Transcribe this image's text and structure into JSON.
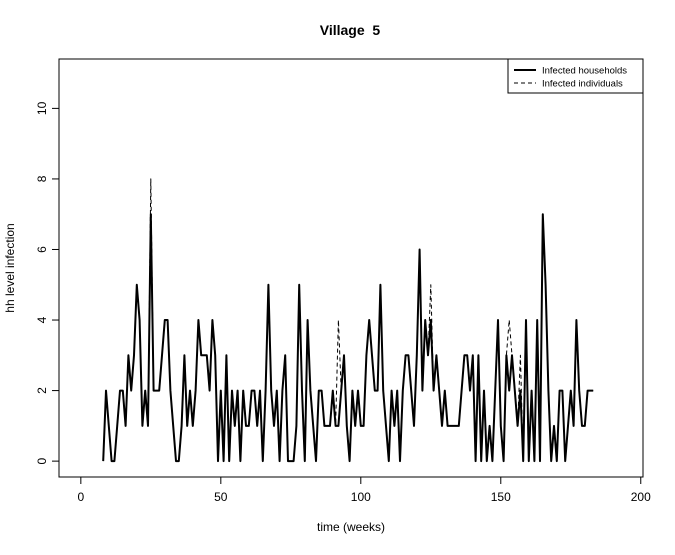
{
  "chart_data": {
    "type": "line",
    "title": "Village  5",
    "x_label": "time (weeks)",
    "y_label": "hh level infection",
    "x": [
      8,
      9,
      10,
      11,
      12,
      13,
      14,
      15,
      16,
      17,
      18,
      19,
      20,
      21,
      22,
      23,
      24,
      25,
      26,
      27,
      28,
      29,
      30,
      31,
      32,
      33,
      34,
      35,
      36,
      37,
      38,
      39,
      40,
      41,
      42,
      43,
      44,
      45,
      46,
      47,
      48,
      49,
      50,
      51,
      52,
      53,
      54,
      55,
      56,
      57,
      58,
      59,
      60,
      61,
      62,
      63,
      64,
      65,
      66,
      67,
      68,
      69,
      70,
      71,
      72,
      73,
      74,
      75,
      76,
      77,
      78,
      79,
      80,
      81,
      82,
      83,
      84,
      85,
      86,
      87,
      88,
      89,
      90,
      91,
      92,
      93,
      94,
      95,
      96,
      97,
      98,
      99,
      100,
      101,
      102,
      103,
      104,
      105,
      106,
      107,
      108,
      109,
      110,
      111,
      112,
      113,
      114,
      115,
      116,
      117,
      118,
      119,
      120,
      121,
      122,
      123,
      124,
      125,
      126,
      127,
      128,
      129,
      130,
      131,
      132,
      133,
      134,
      135,
      136,
      137,
      138,
      139,
      140,
      141,
      142,
      143,
      144,
      145,
      146,
      147,
      148,
      149,
      150,
      151,
      152,
      153,
      154,
      155,
      156,
      157,
      158,
      159,
      160,
      161,
      162,
      163,
      164,
      165,
      166,
      167,
      168,
      169,
      170,
      171,
      172,
      173,
      174,
      175,
      176,
      177,
      178,
      179,
      180,
      181,
      182,
      183
    ],
    "series": [
      {
        "name": "Infected households",
        "color": "#000000",
        "dash": "solid",
        "values": [
          0,
          2,
          1,
          0,
          0,
          1,
          2,
          2,
          1,
          3,
          2,
          3,
          5,
          4,
          1,
          2,
          1,
          7,
          2,
          2,
          2,
          3,
          4,
          4,
          2,
          1,
          0,
          0,
          1,
          3,
          1,
          2,
          1,
          2,
          4,
          3,
          3,
          3,
          2,
          4,
          3,
          0,
          2,
          0,
          3,
          0,
          2,
          1,
          2,
          0,
          2,
          1,
          1,
          2,
          2,
          1,
          2,
          0,
          2,
          5,
          2,
          1,
          2,
          0,
          2,
          3,
          0,
          0,
          0,
          1,
          5,
          2,
          0,
          4,
          2,
          1,
          0,
          2,
          2,
          1,
          1,
          1,
          2,
          1,
          1,
          2,
          3,
          1,
          0,
          2,
          1,
          2,
          1,
          1,
          3,
          4,
          3,
          2,
          2,
          5,
          2,
          1,
          0,
          2,
          1,
          2,
          0,
          2,
          3,
          3,
          2,
          1,
          3,
          6,
          2,
          4,
          3,
          4,
          2,
          3,
          2,
          1,
          2,
          1,
          1,
          1,
          1,
          1,
          2,
          3,
          3,
          2,
          3,
          0,
          3,
          0,
          2,
          0,
          1,
          0,
          2,
          4,
          1,
          0,
          3,
          2,
          3,
          2,
          1,
          2,
          0,
          4,
          0,
          2,
          0,
          4,
          0,
          7,
          5,
          2,
          0,
          1,
          0,
          2,
          2,
          0,
          1,
          2,
          1,
          4,
          2,
          1,
          1,
          2,
          2,
          2
        ]
      },
      {
        "name": "Infected individuals",
        "color": "#000000",
        "dash": "dashed",
        "values": [
          0,
          2,
          1,
          0,
          0,
          1,
          2,
          2,
          1,
          3,
          2,
          3,
          5,
          4,
          1,
          2,
          1,
          8,
          2,
          2,
          2,
          3,
          4,
          4,
          2,
          1,
          0,
          0,
          1,
          3,
          1,
          2,
          1,
          2,
          4,
          3,
          3,
          3,
          2,
          4,
          3,
          0,
          2,
          0,
          3,
          0,
          2,
          1,
          2,
          0,
          2,
          1,
          1,
          2,
          2,
          1,
          2,
          0,
          2,
          5,
          2,
          1,
          2,
          0,
          2,
          3,
          0,
          0,
          0,
          1,
          5,
          2,
          0,
          4,
          2,
          1,
          0,
          2,
          2,
          1,
          1,
          1,
          2,
          1,
          4,
          2,
          3,
          1,
          0,
          2,
          1,
          2,
          1,
          1,
          3,
          4,
          3,
          2,
          2,
          5,
          2,
          1,
          0,
          2,
          1,
          2,
          0,
          2,
          3,
          3,
          2,
          1,
          3,
          6,
          2,
          4,
          3,
          5,
          2,
          3,
          2,
          1,
          2,
          1,
          1,
          1,
          1,
          1,
          2,
          3,
          3,
          2,
          3,
          0,
          3,
          0,
          2,
          0,
          1,
          0,
          2,
          4,
          1,
          0,
          3,
          4,
          3,
          2,
          1,
          3,
          0,
          4,
          0,
          2,
          0,
          4,
          0,
          7,
          5,
          2,
          0,
          1,
          0,
          2,
          2,
          0,
          1,
          2,
          1,
          4,
          2,
          1,
          1,
          2,
          2,
          2
        ]
      }
    ],
    "xlim": [
      -7.8,
      200.8
    ],
    "ylim": [
      -0.45,
      11.4
    ],
    "xticks": [
      0,
      50,
      100,
      150,
      200
    ],
    "yticks": [
      0,
      2,
      4,
      6,
      8,
      10
    ],
    "legend": "top-right"
  }
}
